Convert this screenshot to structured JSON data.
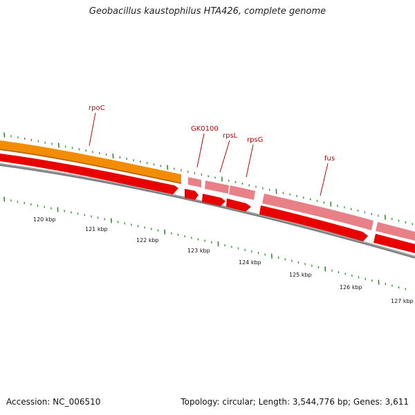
{
  "map": {
    "title": "Geobacillus kaustophilus HTA426, complete genome",
    "accession": "Accession: NC_006510",
    "summary": "Topology: circular; Length: 3,544,776 bp; Genes: 3,611"
  },
  "colors": {
    "orange_gene": "#f28c00",
    "red_gene": "#e80000",
    "pink_gene": "#e88088",
    "backbone": "#808080",
    "tick": "#2e8b2e",
    "label": "#cc0000"
  },
  "gene_labels": [
    {
      "name": "rpoC"
    },
    {
      "name": "GK0100"
    },
    {
      "name": "rpsL"
    },
    {
      "name": "rpsG"
    },
    {
      "name": "fus"
    }
  ],
  "scale_labels": [
    "120 kbp",
    "121 kbp",
    "122 kbp",
    "123 kbp",
    "124 kbp",
    "125 kbp",
    "126 kbp",
    "127 kbp"
  ]
}
